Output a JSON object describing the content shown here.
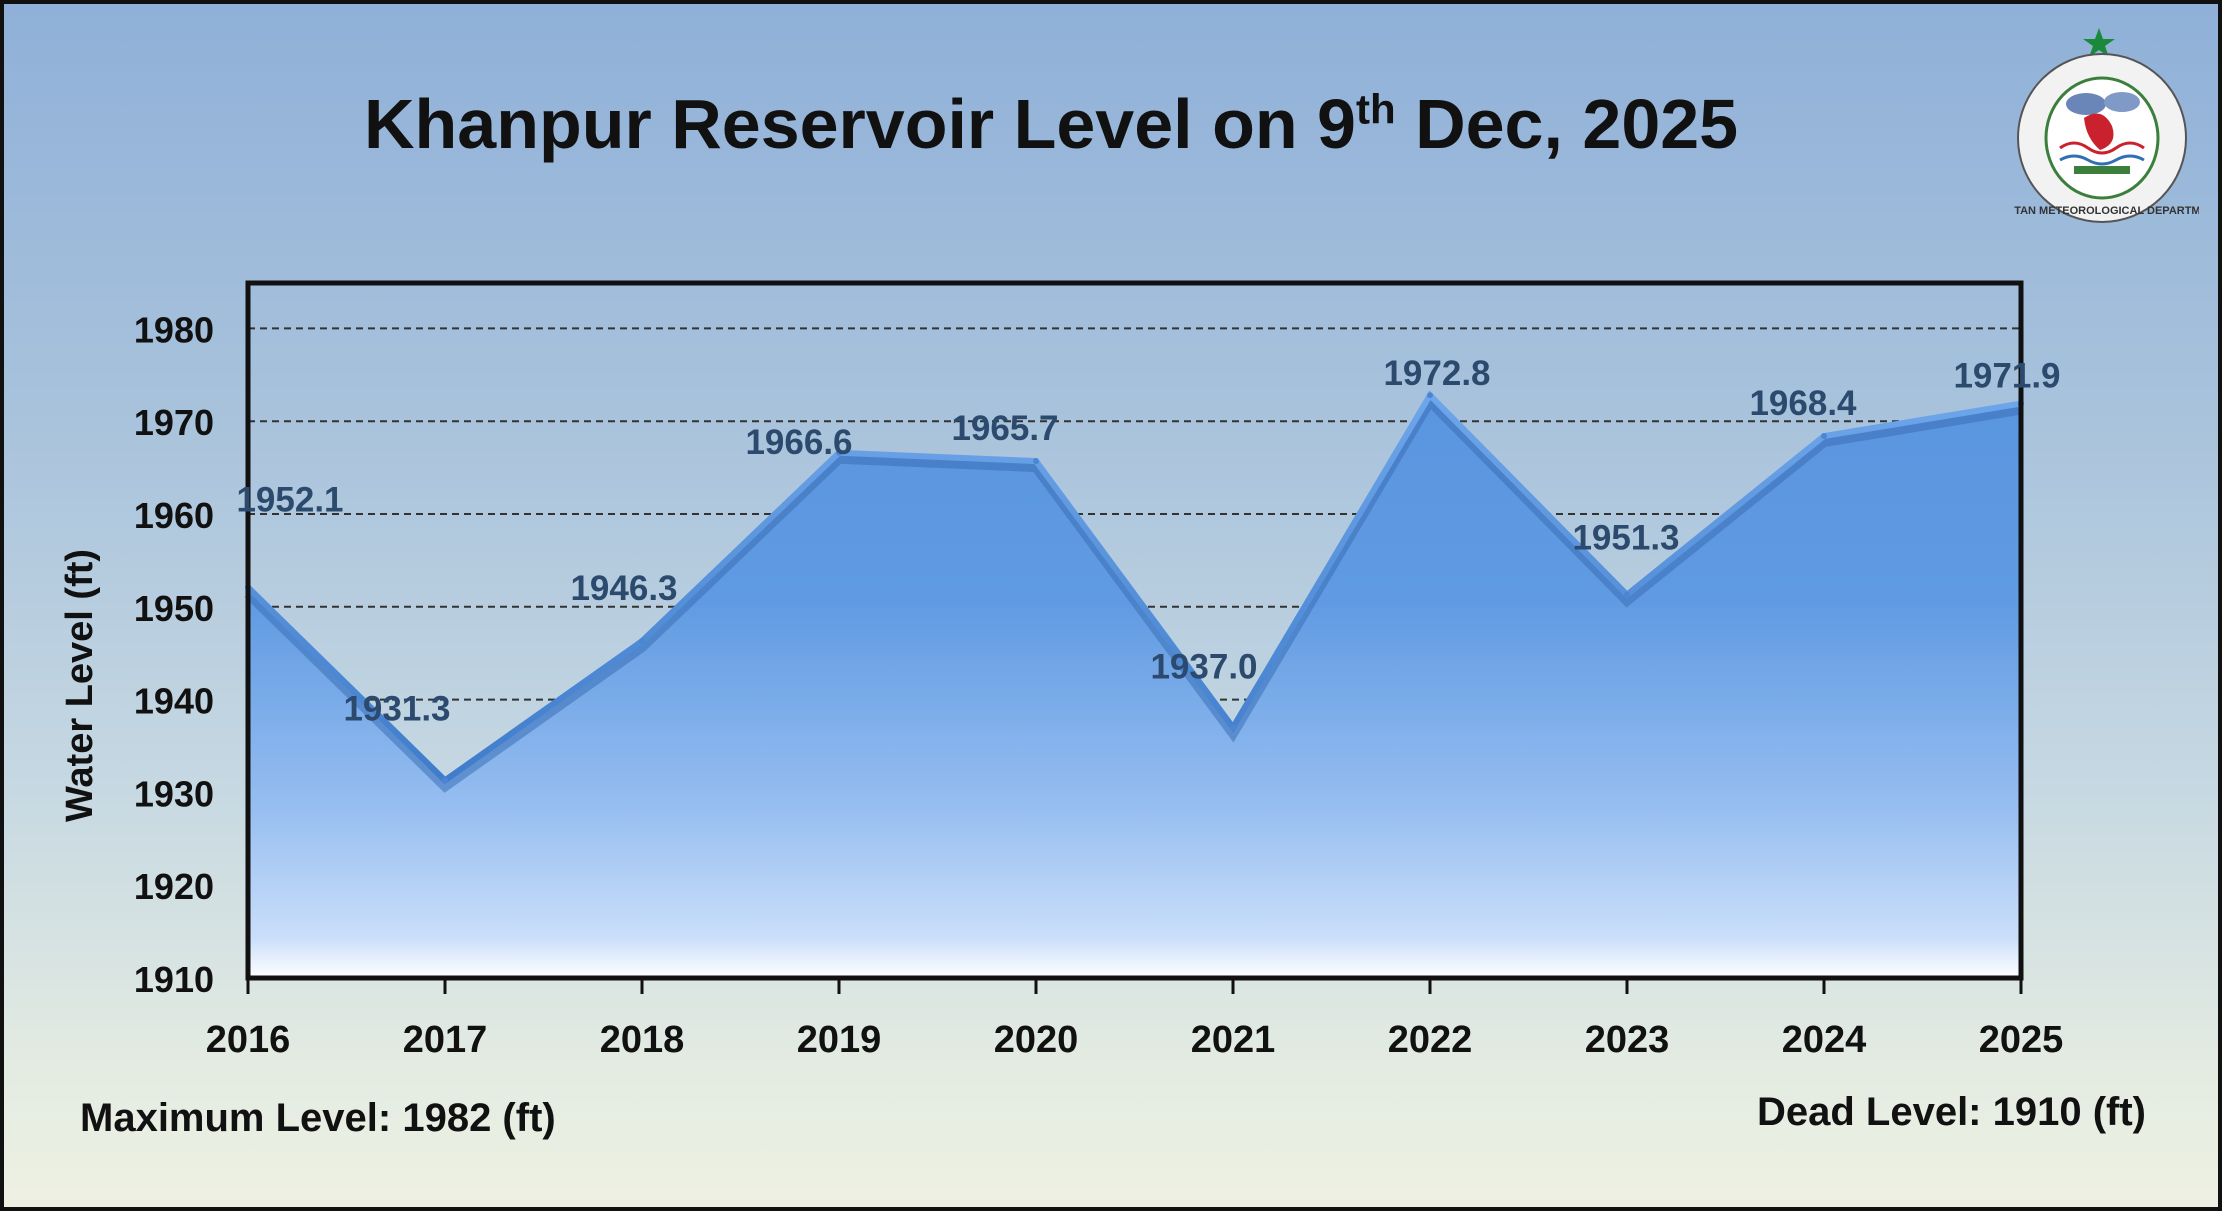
{
  "title": {
    "main": "Khanpur Reservoir Level on 9",
    "sup": "th",
    "rest": " Dec, 2025"
  },
  "footer": {
    "max_level": "Maximum Level: 1982 (ft)",
    "dead_level": "Dead Level: 1910 (ft)"
  },
  "logo": {
    "text": "PAKISTAN METEOROLOGICAL DEPARTMENT",
    "icon": "pmd-emblem-icon"
  },
  "colors": {
    "area_top": "#5b97e0",
    "area_bottom": "#eef6ff",
    "label": "#2c4a6e"
  },
  "chart_data": {
    "type": "area",
    "title": "Khanpur Reservoir Level on 9th Dec, 2025",
    "xlabel": "",
    "ylabel": "Water Level (ft)",
    "categories": [
      "2016",
      "2017",
      "2018",
      "2019",
      "2020",
      "2021",
      "2022",
      "2023",
      "2024",
      "2025"
    ],
    "values": [
      1952.1,
      1931.3,
      1946.3,
      1966.6,
      1965.7,
      1937.0,
      1972.8,
      1951.3,
      1968.4,
      1971.9
    ],
    "value_labels": [
      "1952.1",
      "1931.3",
      "1946.3",
      "1966.6",
      "1965.7",
      "1937.0",
      "1972.8",
      "1951.3",
      "1968.4",
      "1971.9"
    ],
    "ylim": [
      1910,
      1985
    ],
    "yticks": [
      1910,
      1920,
      1930,
      1940,
      1950,
      1960,
      1970,
      1980
    ],
    "grid": true,
    "legend": "none"
  }
}
